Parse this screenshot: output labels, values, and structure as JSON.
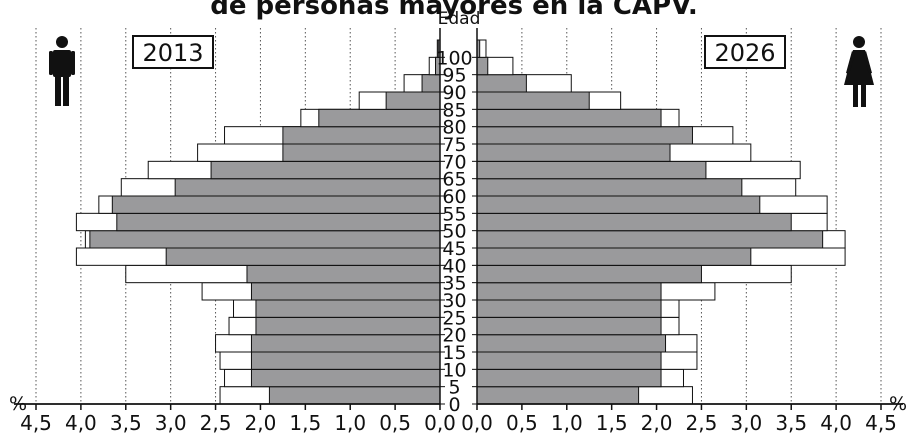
{
  "chart_data": {
    "type": "bar",
    "title": "de personas mayores en la CAPV.",
    "y_axis_label": "Edad",
    "x_unit": "%",
    "x_ticks": [
      "4,5",
      "4,0",
      "3,5",
      "3,0",
      "2,5",
      "2,0",
      "1,5",
      "1,0",
      "0,5",
      "0,0"
    ],
    "age_labels": [
      "0",
      "5",
      "10",
      "15",
      "20",
      "25",
      "30",
      "35",
      "40",
      "45",
      "50",
      "55",
      "60",
      "65",
      "70",
      "75",
      "80",
      "85",
      "90",
      "95",
      "100"
    ],
    "age_groups": [
      "0-4",
      "5-9",
      "10-14",
      "15-19",
      "20-24",
      "25-29",
      "30-34",
      "35-39",
      "40-44",
      "45-49",
      "50-54",
      "55-59",
      "60-64",
      "65-69",
      "70-74",
      "75-79",
      "80-84",
      "85-89",
      "90-94",
      "95-99",
      "100+"
    ],
    "xlim": [
      0,
      4.5
    ],
    "left_panel": {
      "year_label": "2013",
      "icon": "male-icon",
      "series": [
        {
          "name": "2013",
          "style": "gray",
          "values": [
            1.9,
            2.1,
            2.1,
            2.1,
            2.05,
            2.05,
            2.1,
            2.15,
            3.05,
            3.9,
            3.6,
            3.65,
            2.95,
            2.55,
            1.75,
            1.75,
            1.35,
            0.6,
            0.2,
            0.05,
            0.02
          ]
        },
        {
          "name": "2026",
          "style": "outline",
          "values": [
            2.45,
            2.4,
            2.45,
            2.5,
            2.35,
            2.3,
            2.65,
            3.5,
            4.05,
            3.95,
            4.05,
            3.8,
            3.55,
            3.25,
            2.7,
            2.4,
            1.55,
            0.9,
            0.4,
            0.12,
            0.03
          ]
        }
      ]
    },
    "right_panel": {
      "year_label": "2026",
      "icon": "female-icon",
      "series": [
        {
          "name": "2013",
          "style": "gray",
          "values": [
            1.8,
            2.05,
            2.05,
            2.1,
            2.05,
            2.05,
            2.05,
            2.5,
            3.05,
            3.85,
            3.5,
            3.15,
            2.95,
            2.55,
            2.15,
            2.4,
            2.05,
            1.25,
            0.55,
            0.12,
            0.03
          ]
        },
        {
          "name": "2026",
          "style": "outline",
          "values": [
            2.4,
            2.3,
            2.45,
            2.45,
            2.25,
            2.25,
            2.65,
            3.5,
            4.1,
            4.1,
            3.9,
            3.9,
            3.55,
            3.6,
            3.05,
            2.85,
            2.25,
            1.6,
            1.05,
            0.4,
            0.1
          ]
        }
      ]
    },
    "grid": "dotted vertical lines at each tick"
  }
}
